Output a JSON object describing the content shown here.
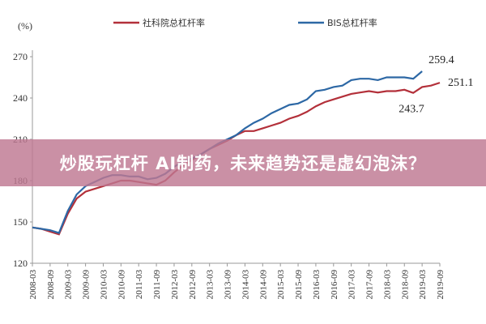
{
  "chart_data": {
    "type": "line",
    "y_label": "(%)",
    "categories": [
      "2008-03",
      null,
      "2008-09",
      null,
      "2009-03",
      null,
      "2009-09",
      null,
      "2010-03",
      null,
      "2010-09",
      null,
      "2011-03",
      null,
      "2011-09",
      null,
      "2012-03",
      null,
      "2012-09",
      null,
      "2013-03",
      null,
      "2013-09",
      null,
      "2014-03",
      null,
      "2014-09",
      null,
      "2015-03",
      null,
      "2015-09",
      null,
      "2016-03",
      null,
      "2016-09",
      null,
      "2017-03",
      null,
      "2017-09",
      null,
      "2018-03",
      null,
      "2018-09",
      null,
      "2019-03",
      null,
      "2019-09"
    ],
    "series": [
      {
        "name": "社科院总杠杆率",
        "color": "#b3303a",
        "values": [
          146,
          145,
          143,
          141,
          156,
          167,
          172,
          174,
          176,
          178,
          180,
          180,
          179,
          178,
          177,
          180,
          186,
          191,
          195,
          199,
          203,
          206,
          209,
          213,
          216,
          216,
          218,
          220,
          222,
          225,
          227,
          230,
          234,
          237,
          239,
          241,
          243,
          244,
          245,
          244,
          245,
          245,
          246,
          243.7,
          248,
          249,
          251.1
        ]
      },
      {
        "name": "BIS总杠杆率",
        "color": "#2d68a5",
        "values": [
          146,
          145,
          144,
          142,
          158,
          170,
          176,
          179,
          182,
          184,
          184,
          183,
          183,
          181,
          182,
          185,
          190,
          194,
          196,
          199,
          203,
          207,
          210,
          213,
          218,
          222,
          225,
          229,
          232,
          235,
          236,
          239,
          245,
          246,
          248,
          249,
          253,
          254,
          254,
          253,
          255,
          255,
          255,
          254,
          259.4,
          null,
          null
        ]
      }
    ],
    "ylim": [
      120,
      270
    ],
    "yticks": [
      120,
      150,
      180,
      210,
      240,
      270
    ]
  },
  "banner": "炒股玩杠杆 AI制药，未来趋势还是虚幻泡沫？"
}
